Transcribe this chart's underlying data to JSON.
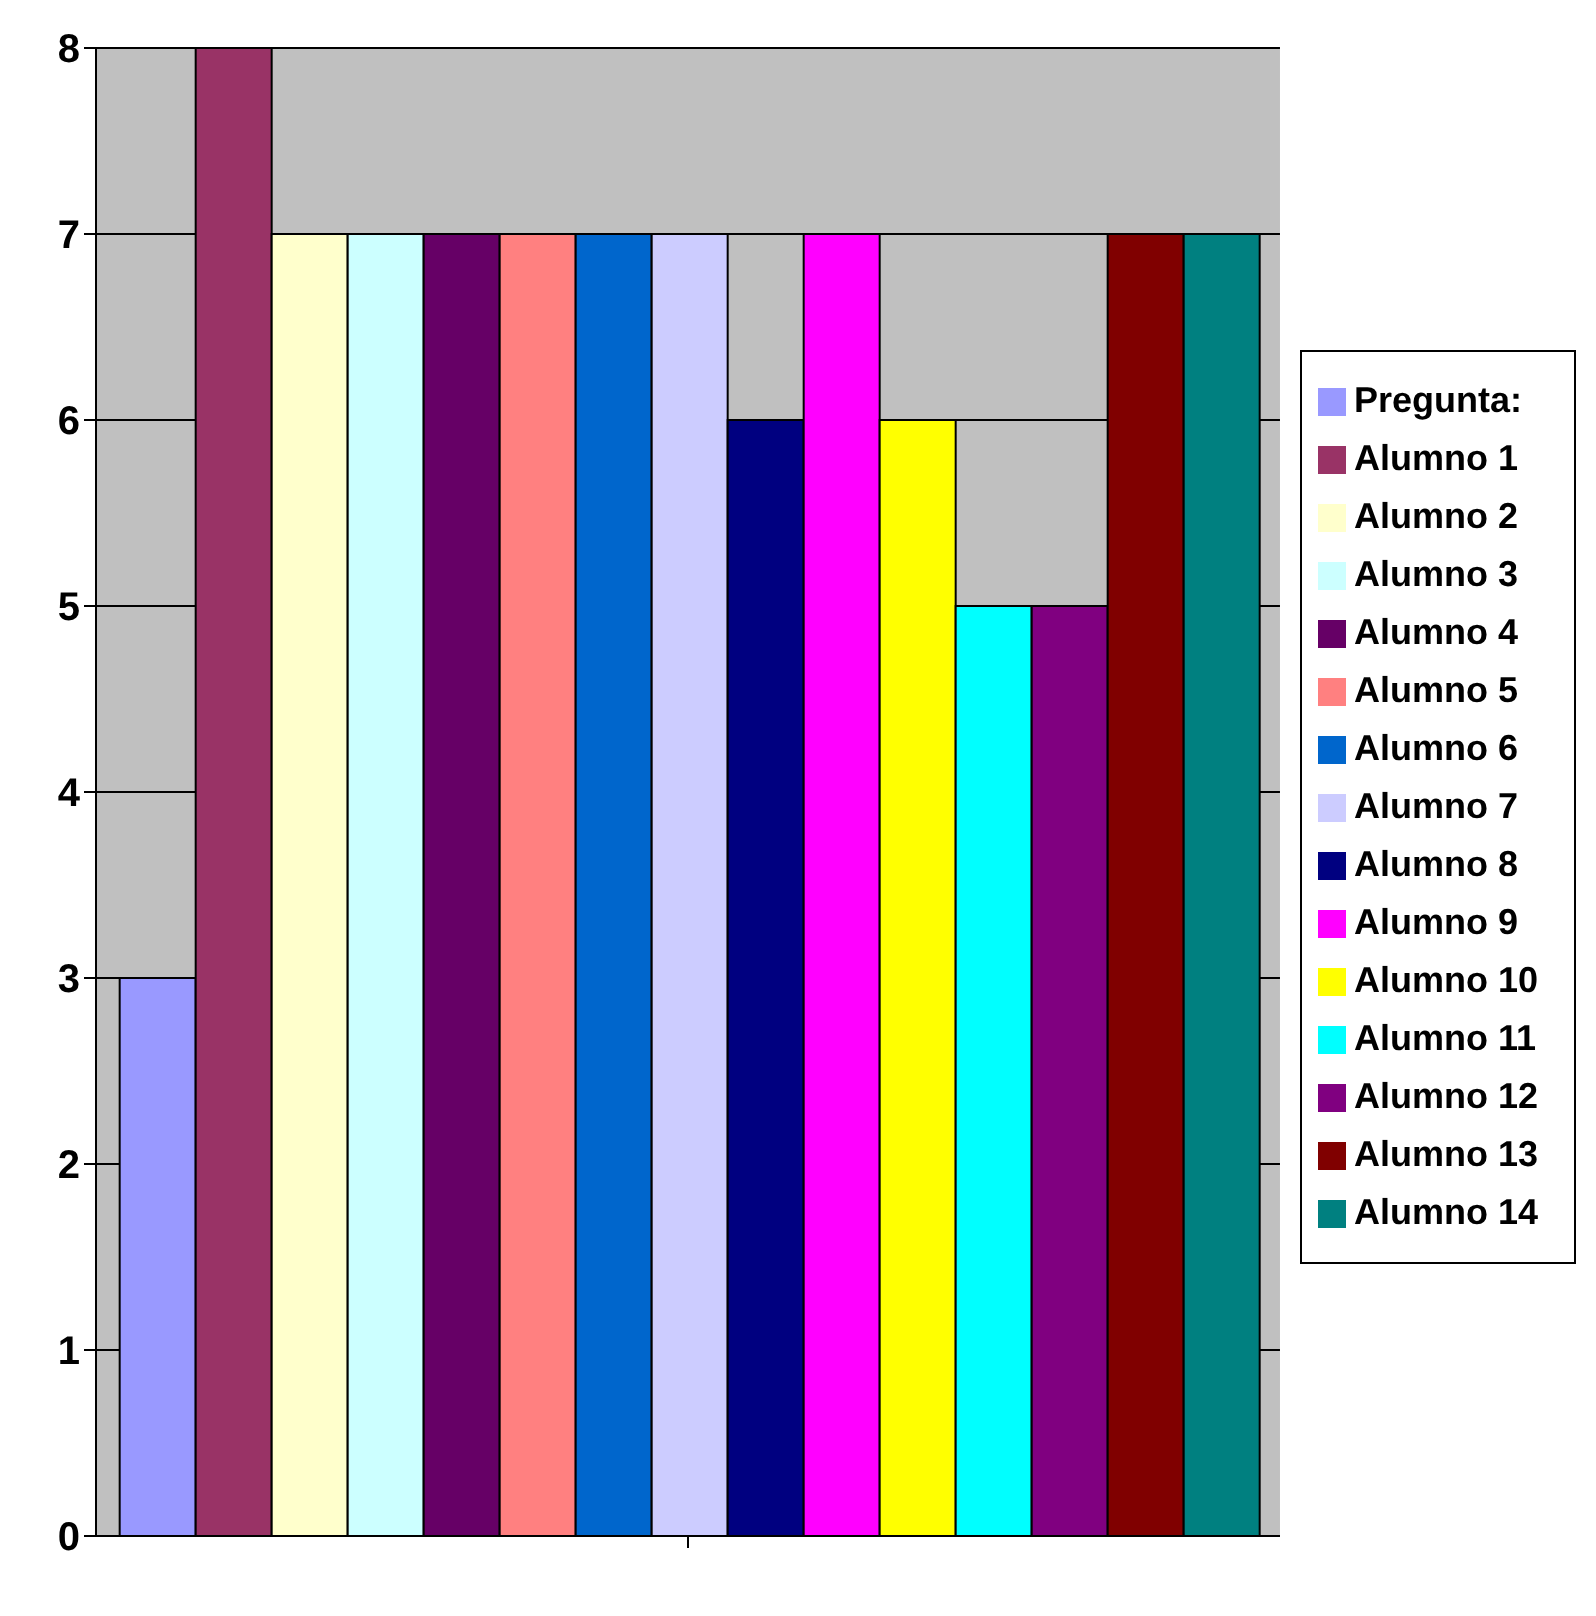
{
  "chart_data": {
    "type": "bar",
    "categories": [
      null
    ],
    "series": [
      {
        "name": "Pregunta:",
        "color": "#9999ff",
        "values": [
          3
        ]
      },
      {
        "name": "Alumno 1",
        "color": "#993366",
        "values": [
          8
        ]
      },
      {
        "name": "Alumno 2",
        "color": "#ffffcc",
        "values": [
          7
        ]
      },
      {
        "name": "Alumno 3",
        "color": "#ccffff",
        "values": [
          7
        ]
      },
      {
        "name": "Alumno 4",
        "color": "#660066",
        "values": [
          7
        ]
      },
      {
        "name": "Alumno 5",
        "color": "#ff8080",
        "values": [
          7
        ]
      },
      {
        "name": "Alumno 6",
        "color": "#0066cc",
        "values": [
          7
        ]
      },
      {
        "name": "Alumno 7",
        "color": "#ccccff",
        "values": [
          7
        ]
      },
      {
        "name": "Alumno 8",
        "color": "#000080",
        "values": [
          6
        ]
      },
      {
        "name": "Alumno 9",
        "color": "#ff00ff",
        "values": [
          7
        ]
      },
      {
        "name": "Alumno 10",
        "color": "#ffff00",
        "values": [
          6
        ]
      },
      {
        "name": "Alumno 11",
        "color": "#00ffff",
        "values": [
          5
        ]
      },
      {
        "name": "Alumno 12",
        "color": "#800080",
        "values": [
          5
        ]
      },
      {
        "name": "Alumno 13",
        "color": "#800000",
        "values": [
          7
        ]
      },
      {
        "name": "Alumno 14",
        "color": "#008080",
        "values": [
          7
        ]
      }
    ],
    "ylim": [
      0,
      8
    ],
    "yticks": [
      0,
      1,
      2,
      3,
      4,
      5,
      6,
      7,
      8
    ],
    "grid": "y",
    "legend": "right"
  }
}
